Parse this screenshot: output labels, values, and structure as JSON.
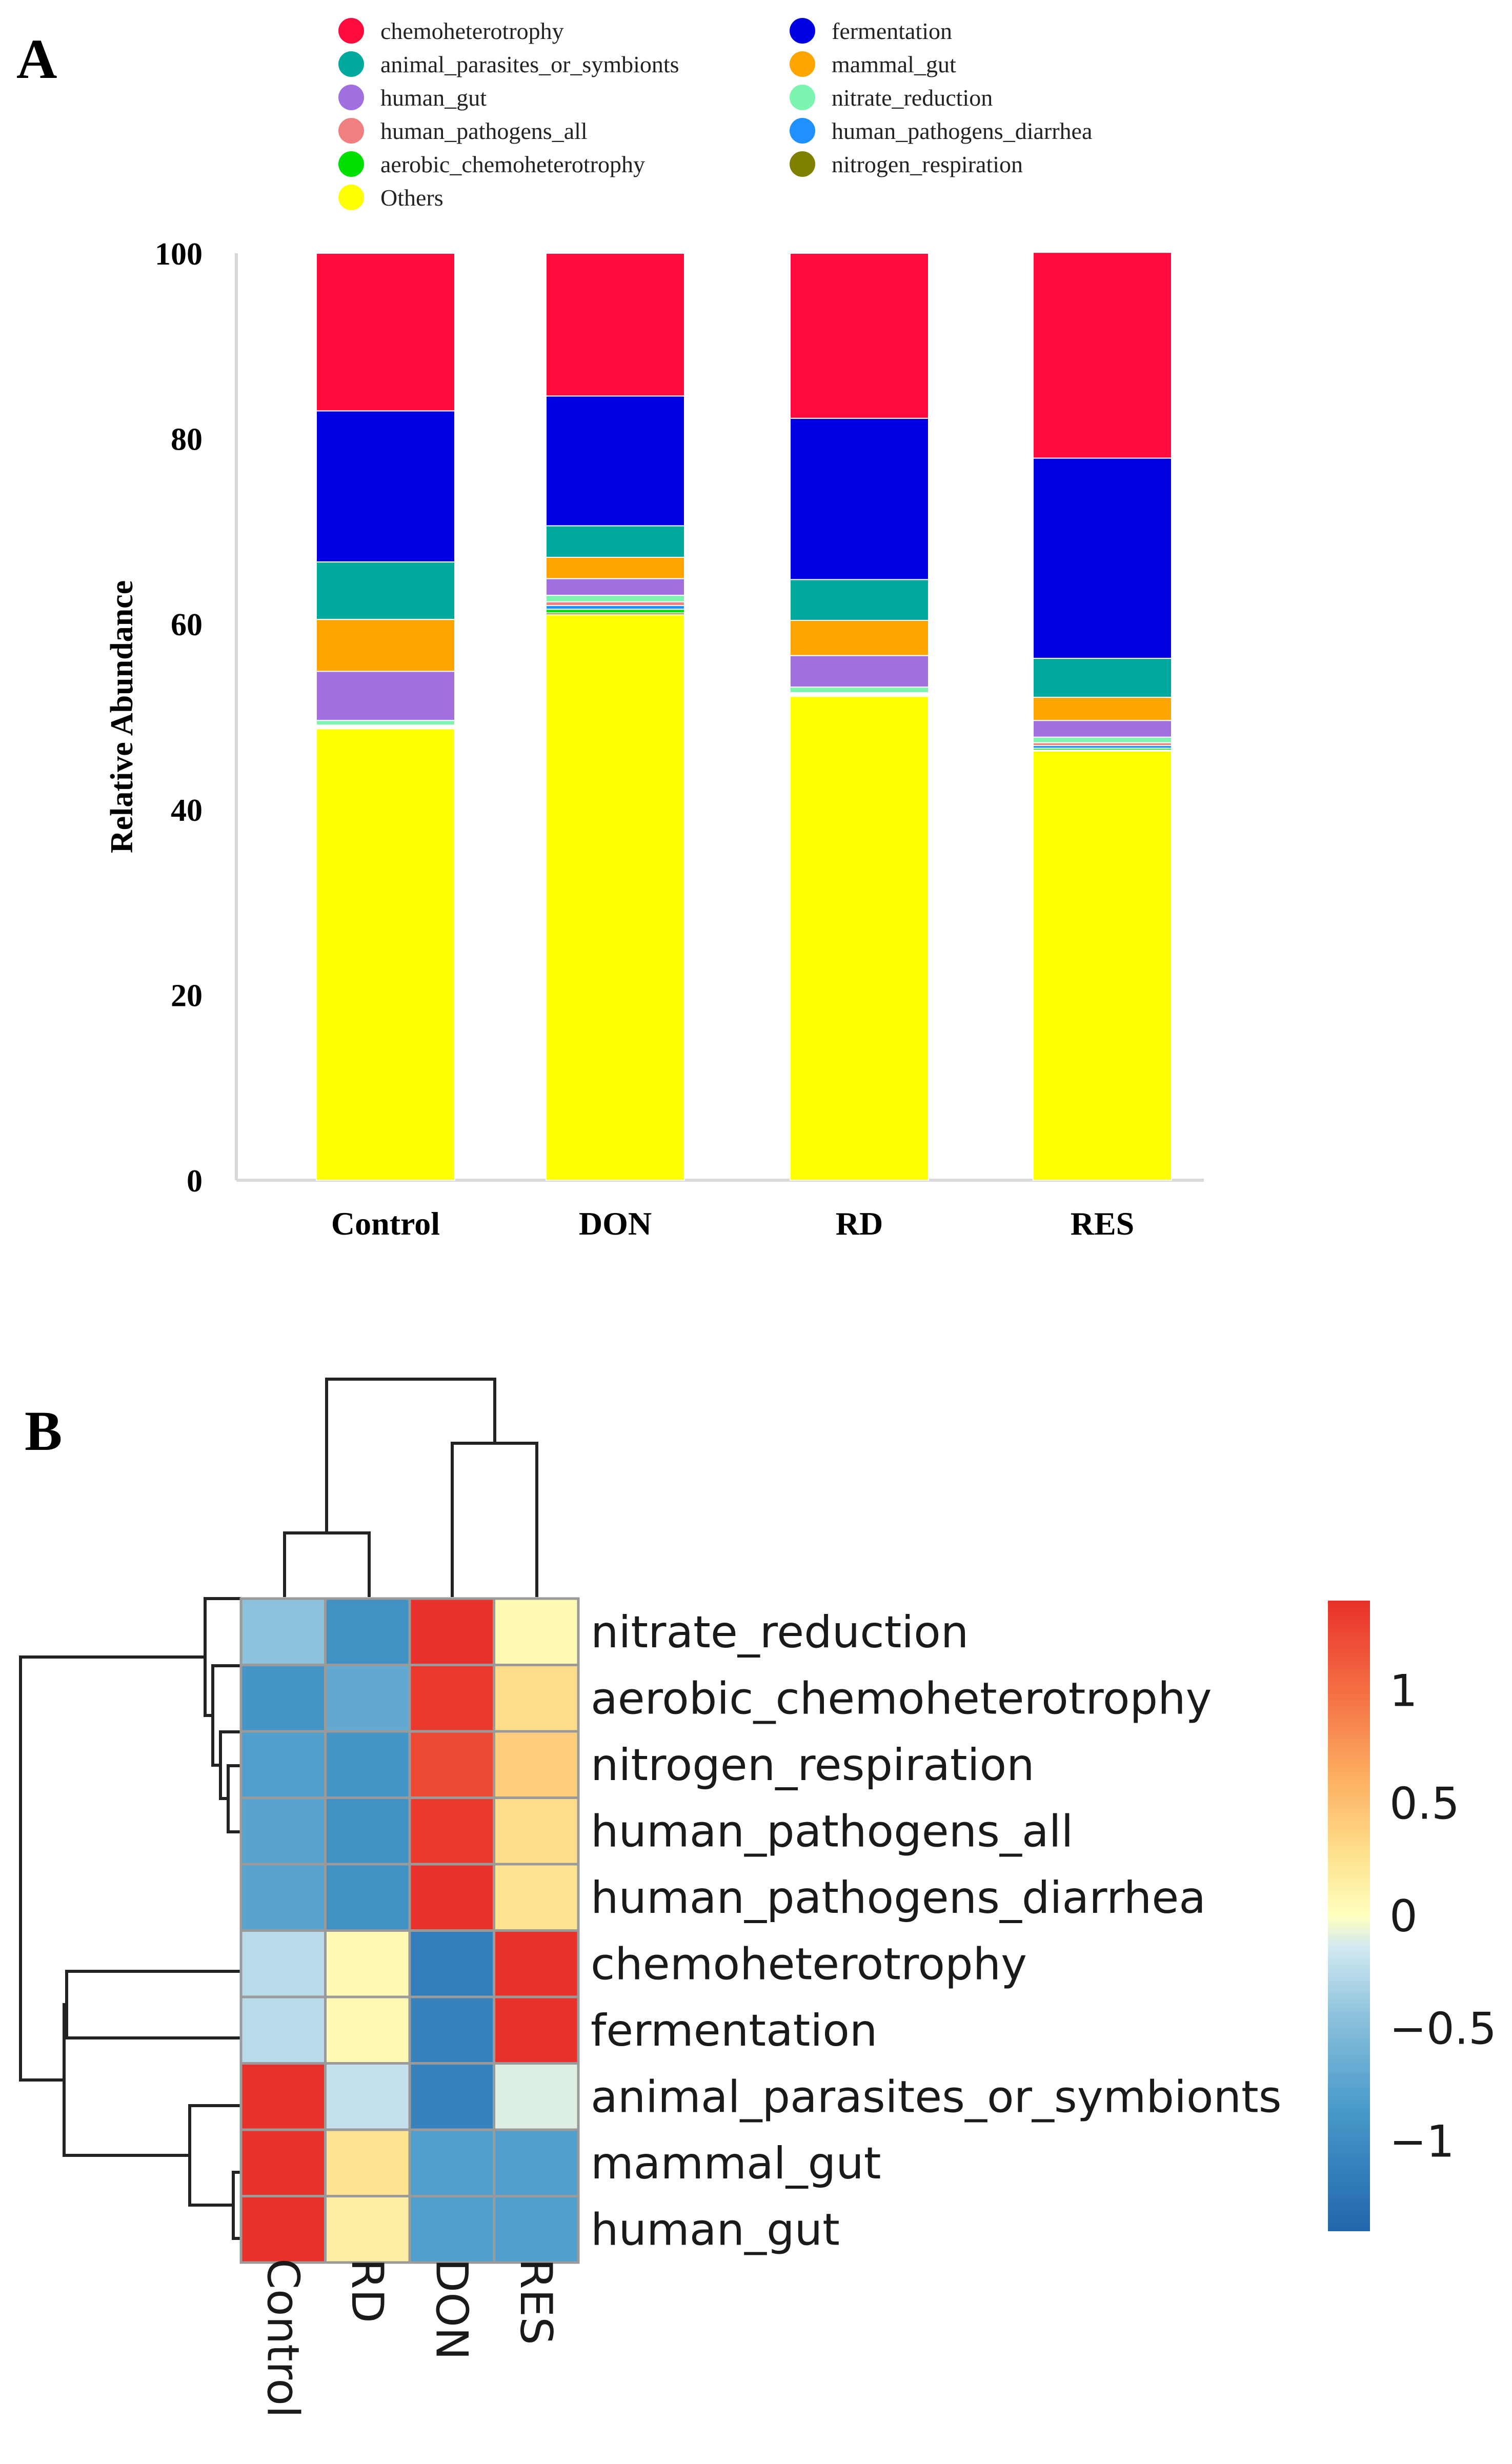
{
  "panel_a": {
    "label": "A",
    "chart_data": {
      "type": "bar",
      "stacked": true,
      "title": "",
      "xlabel": "",
      "ylabel": "Relative Abundance",
      "ylim": [
        0,
        100
      ],
      "yticks": [
        0,
        20,
        40,
        60,
        80,
        100
      ],
      "categories": [
        "Control",
        "DON",
        "RD",
        "RES"
      ],
      "legend_position": "top",
      "series": [
        {
          "name": "Others",
          "color": "#FFFF00",
          "values": [
            48.7,
            61.0,
            52.2,
            46.3
          ]
        },
        {
          "name": "nitrogen_respiration",
          "color": "#808000",
          "values": [
            0.1,
            0.2,
            0.1,
            0.1
          ]
        },
        {
          "name": "aerobic_chemoheterotrophy",
          "color": "#00E000",
          "values": [
            0.1,
            0.4,
            0.1,
            0.2
          ]
        },
        {
          "name": "human_pathogens_diarrhea",
          "color": "#1E90FF",
          "values": [
            0.1,
            0.4,
            0.1,
            0.3
          ]
        },
        {
          "name": "human_pathogens_all",
          "color": "#F08080",
          "values": [
            0.1,
            0.4,
            0.1,
            0.3
          ]
        },
        {
          "name": "nitrate_reduction",
          "color": "#7CF5B0",
          "values": [
            0.5,
            0.7,
            0.6,
            0.6
          ]
        },
        {
          "name": "human_gut",
          "color": "#A070E0",
          "values": [
            5.3,
            1.8,
            3.4,
            1.8
          ]
        },
        {
          "name": "mammal_gut",
          "color": "#FFA500",
          "values": [
            5.6,
            2.3,
            3.8,
            2.5
          ]
        },
        {
          "name": "animal_parasites_or_symbionts",
          "color": "#00A89D",
          "values": [
            6.2,
            3.4,
            4.4,
            4.2
          ]
        },
        {
          "name": "fermentation",
          "color": "#0000E0",
          "values": [
            16.3,
            14.0,
            17.4,
            21.6
          ]
        },
        {
          "name": "chemoheterotrophy",
          "color": "#FF0A3C",
          "values": [
            17.0,
            15.4,
            17.8,
            22.2
          ]
        }
      ],
      "legend": [
        {
          "name": "chemoheterotrophy",
          "color": "#FF0A3C"
        },
        {
          "name": "fermentation",
          "color": "#0000E0"
        },
        {
          "name": "animal_parasites_or_symbionts",
          "color": "#00A89D"
        },
        {
          "name": "mammal_gut",
          "color": "#FFA500"
        },
        {
          "name": "human_gut",
          "color": "#A070E0"
        },
        {
          "name": "nitrate_reduction",
          "color": "#7CF5B0"
        },
        {
          "name": "human_pathogens_all",
          "color": "#F08080"
        },
        {
          "name": "human_pathogens_diarrhea",
          "color": "#1E90FF"
        },
        {
          "name": "aerobic_chemoheterotrophy",
          "color": "#00E000"
        },
        {
          "name": "nitrogen_respiration",
          "color": "#808000"
        },
        {
          "name": "Others",
          "color": "#FFFF00"
        }
      ]
    }
  },
  "panel_b": {
    "label": "B",
    "chart_data": {
      "type": "heatmap",
      "columns": [
        "Control",
        "RD",
        "DON",
        "RES"
      ],
      "rows": [
        "nitrate_reduction",
        "aerobic_chemoheterotrophy",
        "nitrogen_respiration",
        "human_pathogens_all",
        "human_pathogens_diarrhea",
        "chemoheterotrophy",
        "fermentation",
        "animal_parasites_or_symbionts",
        "mammal_gut",
        "human_gut"
      ],
      "values": [
        [
          -0.45,
          -0.95,
          1.4,
          0.05
        ],
        [
          -0.9,
          -0.7,
          1.35,
          0.3
        ],
        [
          -0.8,
          -0.9,
          1.25,
          0.4
        ],
        [
          -0.75,
          -0.95,
          1.35,
          0.3
        ],
        [
          -0.75,
          -0.95,
          1.4,
          0.25
        ],
        [
          -0.25,
          0.05,
          -1.15,
          1.4
        ],
        [
          -0.25,
          0.05,
          -1.1,
          1.4
        ],
        [
          1.4,
          -0.2,
          -1.1,
          -0.1
        ],
        [
          1.4,
          0.25,
          -0.8,
          -0.8
        ],
        [
          1.4,
          0.15,
          -0.8,
          -0.8
        ]
      ],
      "color_range": [
        -1.4,
        1.4
      ],
      "colorbar_ticks": [
        {
          "value": 1,
          "label": "1"
        },
        {
          "value": 0.5,
          "label": "0.5"
        },
        {
          "value": 0,
          "label": "0"
        },
        {
          "value": -0.5,
          "label": "−0.5"
        },
        {
          "value": -1,
          "label": "−1"
        }
      ],
      "colors": {
        "low": "#2C7BB6",
        "mid": "#FFFFBF",
        "high": "#E8312A"
      },
      "col_dendrogram": "((Control,RD),(DON,RES))",
      "row_dendrogram": "(((nitrate_reduction,(aerobic_chemoheterotrophy,(nitrogen_respiration,(human_pathogens_all,human_pathogens_diarrhea))))),((chemoheterotrophy,fermentation),(animal_parasites_or_symbionts,(mammal_gut,human_gut))))"
    }
  }
}
